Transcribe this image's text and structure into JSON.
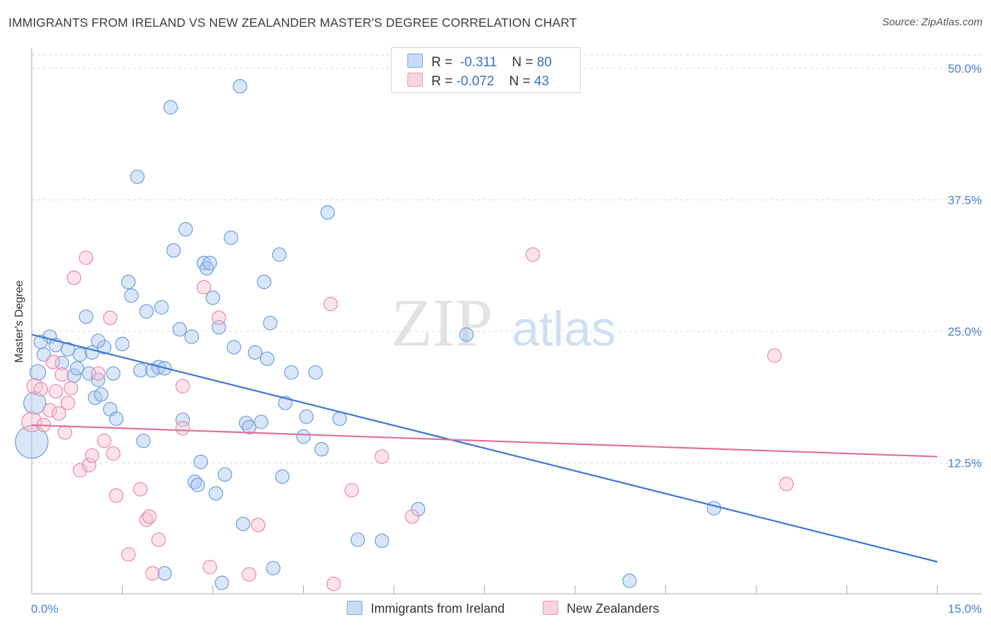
{
  "title": "IMMIGRANTS FROM IRELAND VS NEW ZEALANDER MASTER'S DEGREE CORRELATION CHART",
  "source": "Source: ZipAtlas.com",
  "watermark": {
    "zip": "ZIP",
    "atlas": "atlas"
  },
  "legend": {
    "r_label": "R =",
    "n_label": "N =",
    "series": [
      {
        "r": "-0.311",
        "n": "80",
        "color": "#a8c8f0",
        "border": "#6f9fdc"
      },
      {
        "r": "-0.072",
        "n": "43",
        "color": "#f8c0d0",
        "border": "#e88aa8"
      }
    ]
  },
  "bottom_legend": [
    "Immigrants from Ireland",
    "New Zealanders"
  ],
  "chart_data": {
    "type": "scatter",
    "ylabel": "Master's Degree",
    "xlabel": "",
    "xlim": [
      0,
      15
    ],
    "ylim": [
      0,
      50
    ],
    "x_tick_labels": [
      "0.0%",
      "15.0%"
    ],
    "y_ticks": [
      12.5,
      25.0,
      37.5,
      50.0
    ],
    "y_tick_labels": [
      "12.5%",
      "25.0%",
      "37.5%",
      "50.0%"
    ],
    "grid": "horizontal dashed",
    "series": [
      {
        "name": "Immigrants from Ireland",
        "color": "#a8c8f0",
        "stroke": "#6f9fdc",
        "trend": {
          "x": [
            0,
            15
          ],
          "y": [
            24.7,
            3.1
          ],
          "color": "#3a78d4"
        },
        "points": [
          [
            0.1,
            21.1,
            14
          ],
          [
            0.05,
            18.2,
            20
          ],
          [
            0.0,
            14.5,
            30
          ],
          [
            0.2,
            22.8,
            12
          ],
          [
            0.3,
            24.5,
            12
          ],
          [
            0.4,
            23.7,
            12
          ],
          [
            0.5,
            22.0,
            12
          ],
          [
            0.6,
            23.3,
            12
          ],
          [
            0.7,
            20.8,
            12
          ],
          [
            0.75,
            21.5,
            12
          ],
          [
            0.8,
            22.8,
            12
          ],
          [
            0.9,
            26.4,
            12
          ],
          [
            0.95,
            21.0,
            12
          ],
          [
            1.0,
            23.0,
            12
          ],
          [
            1.05,
            18.7,
            12
          ],
          [
            1.1,
            20.4,
            12
          ],
          [
            1.15,
            19.0,
            12
          ],
          [
            1.2,
            23.5,
            12
          ],
          [
            1.3,
            17.6,
            12
          ],
          [
            1.35,
            21.0,
            12
          ],
          [
            1.4,
            16.7,
            12
          ],
          [
            1.5,
            23.8,
            12
          ],
          [
            1.6,
            29.7,
            12
          ],
          [
            1.65,
            28.4,
            12
          ],
          [
            1.75,
            39.7,
            12
          ],
          [
            1.8,
            21.3,
            12
          ],
          [
            1.85,
            14.6,
            12
          ],
          [
            1.9,
            26.9,
            12
          ],
          [
            2.0,
            21.3,
            12
          ],
          [
            2.1,
            21.6,
            12
          ],
          [
            2.15,
            27.3,
            12
          ],
          [
            2.2,
            21.5,
            12
          ],
          [
            2.3,
            46.3,
            12
          ],
          [
            2.35,
            32.7,
            12
          ],
          [
            2.45,
            25.2,
            12
          ],
          [
            2.5,
            16.6,
            12
          ],
          [
            2.55,
            34.7,
            12
          ],
          [
            2.65,
            24.5,
            12
          ],
          [
            2.7,
            10.7,
            12
          ],
          [
            2.75,
            10.4,
            12
          ],
          [
            2.8,
            12.6,
            12
          ],
          [
            2.85,
            31.5,
            12
          ],
          [
            2.9,
            31.0,
            12
          ],
          [
            2.95,
            31.5,
            12
          ],
          [
            3.0,
            28.2,
            12
          ],
          [
            3.05,
            9.6,
            12
          ],
          [
            3.1,
            25.4,
            12
          ],
          [
            3.15,
            1.1,
            12
          ],
          [
            3.2,
            11.4,
            12
          ],
          [
            3.3,
            33.9,
            12
          ],
          [
            3.35,
            23.5,
            12
          ],
          [
            3.45,
            48.3,
            12
          ],
          [
            3.5,
            6.7,
            12
          ],
          [
            3.55,
            16.3,
            12
          ],
          [
            3.6,
            15.9,
            12
          ],
          [
            3.7,
            23.0,
            12
          ],
          [
            3.8,
            16.4,
            12
          ],
          [
            3.85,
            29.7,
            12
          ],
          [
            3.9,
            22.4,
            12
          ],
          [
            3.95,
            25.8,
            12
          ],
          [
            4.0,
            2.5,
            12
          ],
          [
            4.1,
            32.3,
            12
          ],
          [
            4.15,
            11.2,
            12
          ],
          [
            4.2,
            18.2,
            12
          ],
          [
            4.3,
            21.1,
            12
          ],
          [
            4.5,
            15.0,
            12
          ],
          [
            4.55,
            16.9,
            12
          ],
          [
            4.7,
            21.1,
            12
          ],
          [
            4.8,
            13.8,
            12
          ],
          [
            4.9,
            36.3,
            12
          ],
          [
            5.1,
            16.7,
            12
          ],
          [
            5.4,
            5.2,
            12
          ],
          [
            5.8,
            5.1,
            12
          ],
          [
            6.4,
            8.1,
            12
          ],
          [
            7.2,
            24.7,
            12
          ],
          [
            1.1,
            24.1,
            0
          ],
          [
            11.3,
            8.2,
            12
          ],
          [
            9.9,
            1.3,
            12
          ],
          [
            0.15,
            24.0,
            0
          ],
          [
            2.2,
            2.0,
            12
          ]
        ]
      },
      {
        "name": "New Zealanders",
        "color": "#f8c0d0",
        "stroke": "#e88aa8",
        "trend": {
          "x": [
            0,
            15
          ],
          "y": [
            16.1,
            13.1
          ],
          "color": "#e2709a"
        },
        "points": [
          [
            0.0,
            16.4,
            18
          ],
          [
            0.05,
            19.8,
            14
          ],
          [
            0.15,
            19.5,
            12
          ],
          [
            0.2,
            16.1,
            12
          ],
          [
            0.3,
            17.5,
            12
          ],
          [
            0.35,
            22.1,
            12
          ],
          [
            0.4,
            19.3,
            12
          ],
          [
            0.45,
            17.2,
            12
          ],
          [
            0.5,
            20.9,
            12
          ],
          [
            0.55,
            15.4,
            12
          ],
          [
            0.6,
            18.2,
            12
          ],
          [
            0.65,
            19.6,
            12
          ],
          [
            0.7,
            30.1,
            12
          ],
          [
            0.8,
            11.8,
            12
          ],
          [
            0.9,
            32.0,
            12
          ],
          [
            0.95,
            12.3,
            12
          ],
          [
            1.0,
            13.2,
            12
          ],
          [
            1.1,
            21.0,
            12
          ],
          [
            1.2,
            14.6,
            12
          ],
          [
            1.3,
            26.3,
            12
          ],
          [
            1.35,
            13.4,
            12
          ],
          [
            1.4,
            9.4,
            12
          ],
          [
            1.6,
            3.8,
            12
          ],
          [
            1.8,
            10.0,
            12
          ],
          [
            1.9,
            7.1,
            12
          ],
          [
            1.95,
            7.4,
            12
          ],
          [
            2.0,
            2.0,
            12
          ],
          [
            2.1,
            5.2,
            12
          ],
          [
            2.5,
            19.8,
            12
          ],
          [
            2.5,
            15.8,
            12
          ],
          [
            2.85,
            29.2,
            12
          ],
          [
            2.95,
            2.6,
            12
          ],
          [
            3.1,
            26.3,
            12
          ],
          [
            3.6,
            1.9,
            12
          ],
          [
            3.75,
            6.6,
            12
          ],
          [
            4.95,
            27.6,
            12
          ],
          [
            5.0,
            1.0,
            12
          ],
          [
            5.3,
            9.9,
            12
          ],
          [
            5.8,
            13.1,
            12
          ],
          [
            6.3,
            7.4,
            12
          ],
          [
            8.3,
            32.3,
            12
          ],
          [
            12.3,
            22.7,
            12
          ],
          [
            12.5,
            10.5,
            12
          ]
        ]
      }
    ]
  }
}
